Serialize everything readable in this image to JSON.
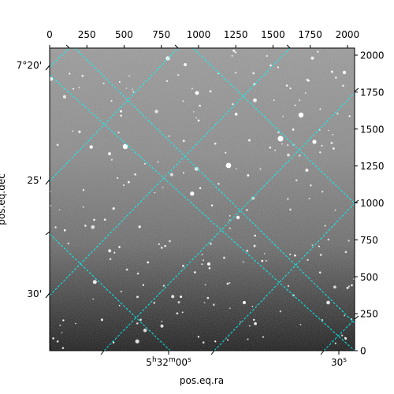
{
  "chart_data": {
    "type": "heatmap",
    "title": "",
    "image": "grayscale astronomical image with star field",
    "colormap": "gray",
    "pixel_axes": {
      "x_range": [
        0,
        2048
      ],
      "y_range": [
        0,
        2048
      ],
      "top_ticks": [
        0,
        250,
        500,
        750,
        1000,
        1250,
        1500,
        1750,
        2000
      ],
      "right_ticks": [
        0,
        250,
        500,
        750,
        1000,
        1250,
        1500,
        1750,
        2000
      ]
    },
    "world_axes": {
      "xlabel": "pos.eq.ra",
      "ylabel": "pos.eq.dec",
      "ra_ticks": [
        {
          "label": "5h32m00s",
          "parts": [
            "5",
            "h",
            "32",
            "m",
            "00",
            "s"
          ]
        },
        {
          "label": "30s",
          "parts": [
            "30",
            "s"
          ]
        }
      ],
      "dec_ticks": [
        {
          "label": "7°20'"
        },
        {
          "label": "25'"
        },
        {
          "label": "30'"
        }
      ]
    },
    "grid": true,
    "grid_color": "#00ffff",
    "grid_style": "dashed"
  }
}
